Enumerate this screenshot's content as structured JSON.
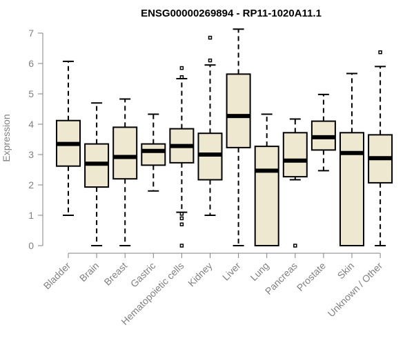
{
  "chart_data": {
    "type": "boxplot",
    "title": "ENSG00000269894 - RP11-1020A11.1",
    "xlabel": "",
    "ylabel": "Expression",
    "ylim": [
      0,
      7
    ],
    "yticks": [
      0,
      1,
      2,
      3,
      4,
      5,
      6,
      7
    ],
    "grid": false,
    "colors": {
      "box_fill": "#eee8d0",
      "stroke": "#000000",
      "axis": "#808080"
    },
    "categories": [
      "Bladder",
      "Brain",
      "Breast",
      "Gastric",
      "Hematopoietic cells",
      "Kidney",
      "Liver",
      "Lung",
      "Pancreas",
      "Prostate",
      "Skin",
      "Unknown / Other"
    ],
    "boxes": [
      {
        "whisker_low": 1.0,
        "q1": 2.62,
        "median": 3.35,
        "q3": 4.12,
        "whisker_high": 6.07,
        "outliers": []
      },
      {
        "whisker_low": 0.0,
        "q1": 1.93,
        "median": 2.7,
        "q3": 3.35,
        "whisker_high": 4.7,
        "outliers": []
      },
      {
        "whisker_low": 0.0,
        "q1": 2.2,
        "median": 2.92,
        "q3": 3.9,
        "whisker_high": 4.83,
        "outliers": []
      },
      {
        "whisker_low": 1.8,
        "q1": 2.65,
        "median": 3.12,
        "q3": 3.35,
        "whisker_high": 4.33,
        "outliers": []
      },
      {
        "whisker_low": 1.1,
        "q1": 2.73,
        "median": 3.28,
        "q3": 3.85,
        "whisker_high": 5.5,
        "outliers": [
          0.0,
          0.7,
          0.9,
          1.05,
          5.55,
          5.85
        ]
      },
      {
        "whisker_low": 1.0,
        "q1": 2.17,
        "median": 3.0,
        "q3": 3.7,
        "whisker_high": 5.95,
        "outliers": [
          6.1,
          6.85
        ]
      },
      {
        "whisker_low": 0.0,
        "q1": 3.23,
        "median": 4.27,
        "q3": 5.65,
        "whisker_high": 7.13,
        "outliers": []
      },
      {
        "whisker_low": 0.0,
        "q1": 0.0,
        "median": 2.47,
        "q3": 3.27,
        "whisker_high": 4.33,
        "outliers": []
      },
      {
        "whisker_low": 2.17,
        "q1": 2.27,
        "median": 2.8,
        "q3": 3.72,
        "whisker_high": 4.17,
        "outliers": [
          0.0
        ]
      },
      {
        "whisker_low": 2.47,
        "q1": 3.15,
        "median": 3.57,
        "q3": 4.1,
        "whisker_high": 4.98,
        "outliers": []
      },
      {
        "whisker_low": 0.0,
        "q1": 0.0,
        "median": 3.05,
        "q3": 3.72,
        "whisker_high": 5.67,
        "outliers": []
      },
      {
        "whisker_low": 0.0,
        "q1": 2.07,
        "median": 2.88,
        "q3": 3.65,
        "whisker_high": 5.9,
        "outliers": [
          6.37
        ]
      }
    ]
  }
}
